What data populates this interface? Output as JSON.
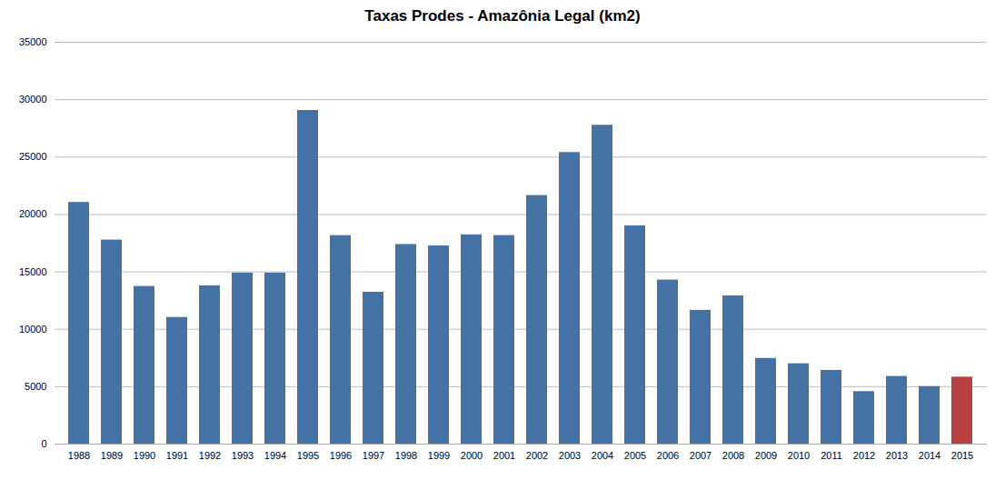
{
  "chart_data": {
    "type": "bar",
    "title": "Taxas Prodes - Amazônia Legal (km2)",
    "categories": [
      "1988",
      "1989",
      "1990",
      "1991",
      "1992",
      "1993",
      "1994",
      "1995",
      "1996",
      "1997",
      "1998",
      "1999",
      "2000",
      "2001",
      "2002",
      "2003",
      "2004",
      "2005",
      "2006",
      "2007",
      "2008",
      "2009",
      "2010",
      "2011",
      "2012",
      "2013",
      "2014",
      "2015"
    ],
    "values": [
      21050,
      17770,
      13730,
      11030,
      13786,
      14896,
      14896,
      29059,
      18161,
      13227,
      17383,
      17259,
      18226,
      18165,
      21651,
      25396,
      27772,
      19014,
      14286,
      11651,
      12911,
      7464,
      7000,
      6418,
      4571,
      5891,
      5012,
      5831
    ],
    "colors": [
      "#4472a4",
      "#4472a4",
      "#4472a4",
      "#4472a4",
      "#4472a4",
      "#4472a4",
      "#4472a4",
      "#4472a4",
      "#4472a4",
      "#4472a4",
      "#4472a4",
      "#4472a4",
      "#4472a4",
      "#4472a4",
      "#4472a4",
      "#4472a4",
      "#4472a4",
      "#4472a4",
      "#4472a4",
      "#4472a4",
      "#4472a4",
      "#4472a4",
      "#4472a4",
      "#4472a4",
      "#4472a4",
      "#4472a4",
      "#4472a4",
      "#b94040"
    ],
    "ylim": [
      0,
      35000
    ],
    "yticks": [
      0,
      5000,
      10000,
      15000,
      20000,
      25000,
      30000,
      35000
    ],
    "grid": true
  }
}
